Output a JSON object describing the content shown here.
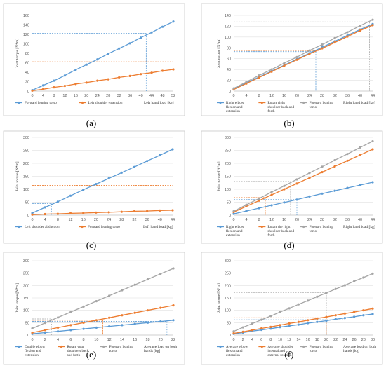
{
  "colors": {
    "series": [
      "#5B9BD5",
      "#ED7D31",
      "#A5A5A5"
    ],
    "grid": "#D9D9D9",
    "axis": "#BFBFBF",
    "panel_border": "#C8C8C8"
  },
  "chart_data": [
    {
      "panel_label": "(a)",
      "type": "line",
      "x": [
        0,
        4,
        8,
        12,
        16,
        20,
        24,
        28,
        32,
        36,
        40,
        44,
        48,
        52
      ],
      "xlabel": "Left hand load [kg]",
      "ylabel": "Joint torque [N*m]",
      "ylim": [
        0,
        160
      ],
      "yticks": [
        0,
        20,
        40,
        60,
        80,
        100,
        120,
        140,
        160
      ],
      "grid": false,
      "legend": "bottom-left",
      "series": [
        {
          "name": "Forward leaning torso",
          "values": [
            2,
            12,
            22,
            33,
            45,
            56,
            67,
            79,
            90,
            101,
            113,
            124,
            136,
            147
          ]
        },
        {
          "name": "Left shoulder extension",
          "values": [
            1,
            4,
            8,
            11,
            15,
            18,
            22,
            25,
            29,
            32,
            36,
            39,
            43,
            46
          ]
        }
      ],
      "reference_lines": [
        {
          "series": 0,
          "y": 122,
          "x": 42
        },
        {
          "series": 1,
          "y": 62,
          "x": null
        }
      ]
    },
    {
      "panel_label": "(b)",
      "type": "line",
      "x": [
        0,
        4,
        8,
        12,
        16,
        20,
        24,
        28,
        32,
        36,
        40,
        44
      ],
      "xlabel": "Right hand load [kg]",
      "ylabel": "Joint torque [N*m]",
      "ylim": [
        0,
        140
      ],
      "yticks": [
        0,
        20,
        40,
        60,
        80,
        100,
        120,
        140
      ],
      "grid": true,
      "legend": "bottom-left",
      "series": [
        {
          "name": "Right elbow flexion and extension",
          "values": [
            4,
            15,
            26,
            37,
            48,
            59,
            70,
            81,
            92,
            103,
            114,
            124
          ]
        },
        {
          "name": "Rotate right shoulder back and forth",
          "values": [
            3,
            14,
            25,
            36,
            47,
            58,
            69,
            79,
            90,
            101,
            112,
            122
          ]
        },
        {
          "name": "Forward leaning torso",
          "values": [
            5,
            17,
            29,
            40,
            52,
            63,
            75,
            86,
            98,
            109,
            121,
            132
          ]
        }
      ],
      "reference_lines": [
        {
          "series": 0,
          "y": 73,
          "x": 26
        },
        {
          "series": 1,
          "y": 75,
          "x": 27
        },
        {
          "series": 2,
          "y": 128,
          "x": 43
        }
      ]
    },
    {
      "panel_label": "(c)",
      "type": "line",
      "x": [
        0,
        4,
        8,
        12,
        16,
        20,
        24,
        28,
        32,
        36,
        40,
        44
      ],
      "xlabel": "Left hand load [kg]",
      "ylabel": "Joint torque [N*m]",
      "ylim": [
        0,
        300
      ],
      "yticks": [
        0,
        50,
        100,
        150,
        200,
        250,
        300
      ],
      "grid": true,
      "legend": "bottom-left",
      "series": [
        {
          "name": "Left shoulder abduction",
          "values": [
            8,
            30,
            52,
            75,
            98,
            120,
            142,
            164,
            186,
            209,
            231,
            254
          ]
        },
        {
          "name": "Forward leaning torso",
          "values": [
            2,
            4,
            5,
            7,
            8,
            10,
            11,
            13,
            15,
            16,
            18,
            19
          ]
        }
      ],
      "reference_lines": [
        {
          "series": 0,
          "y": 45,
          "x": 6
        },
        {
          "series": 1,
          "y": 115,
          "x": null
        }
      ]
    },
    {
      "panel_label": "(d)",
      "type": "line",
      "x": [
        0,
        4,
        8,
        12,
        16,
        20,
        24,
        28,
        32,
        36,
        40,
        44
      ],
      "xlabel": "Right hand load [kg]",
      "ylabel": "Joint torque [N*m]",
      "ylim": [
        0,
        300
      ],
      "yticks": [
        0,
        50,
        100,
        150,
        200,
        250,
        300
      ],
      "grid": true,
      "legend": "bottom-left",
      "series": [
        {
          "name": "Right elbow flexion and extension",
          "values": [
            5,
            16,
            27,
            38,
            49,
            60,
            72,
            83,
            94,
            105,
            116,
            127
          ]
        },
        {
          "name": "Rotate the right shoulder back and forth",
          "values": [
            12,
            34,
            56,
            78,
            100,
            122,
            144,
            166,
            188,
            210,
            232,
            254
          ]
        },
        {
          "name": "Forward leaning torso",
          "values": [
            15,
            40,
            64,
            89,
            113,
            138,
            163,
            187,
            212,
            236,
            261,
            285
          ]
        }
      ],
      "reference_lines": [
        {
          "series": 0,
          "y": 60,
          "x": 20
        },
        {
          "series": 1,
          "y": 68,
          "x": 10
        },
        {
          "series": 2,
          "y": 130,
          "x": 18
        }
      ]
    },
    {
      "panel_label": "(e)",
      "type": "line",
      "x": [
        0,
        2,
        4,
        6,
        8,
        10,
        12,
        14,
        16,
        18,
        20,
        22
      ],
      "xlabel": "Average load on both hands [kg]",
      "ylabel": "Joint torque [N*m]",
      "ylim": [
        0,
        300
      ],
      "yticks": [
        0,
        50,
        100,
        150,
        200,
        250,
        300
      ],
      "grid": true,
      "legend": "bottom-left",
      "series": [
        {
          "name": "Double elbow flexion and extension",
          "values": [
            5,
            10,
            15,
            20,
            25,
            30,
            35,
            40,
            45,
            50,
            55,
            60
          ]
        },
        {
          "name": "Rotate your shoulders back and forth",
          "values": [
            10,
            20,
            30,
            40,
            50,
            60,
            70,
            80,
            90,
            100,
            110,
            120
          ]
        },
        {
          "name": "Forward leaning torso",
          "values": [
            27,
            49,
            71,
            93,
            115,
            137,
            159,
            181,
            203,
            225,
            247,
            269
          ]
        }
      ],
      "reference_lines": [
        {
          "series": 0,
          "y": 55,
          "x": 21
        },
        {
          "series": 1,
          "y": 60,
          "x": 11
        },
        {
          "series": 2,
          "y": 65,
          "x": 3
        }
      ]
    },
    {
      "panel_label": "(f)",
      "type": "line",
      "x": [
        0,
        2,
        4,
        6,
        8,
        10,
        12,
        14,
        16,
        18,
        20,
        22,
        24,
        26,
        28,
        30
      ],
      "xlabel": "Average load on both hands [kg]",
      "ylabel": "Joint torque [N*m]",
      "ylim": [
        0,
        300
      ],
      "yticks": [
        0,
        50,
        100,
        150,
        200,
        250,
        300
      ],
      "grid": true,
      "legend": "bottom-left",
      "series": [
        {
          "name": "Average elbow flexion and extension",
          "values": [
            5,
            10,
            16,
            21,
            26,
            32,
            37,
            42,
            48,
            53,
            58,
            64,
            69,
            74,
            80,
            85
          ]
        },
        {
          "name": "Average shoulder internal and external rotation",
          "values": [
            7,
            13,
            20,
            27,
            33,
            40,
            47,
            53,
            60,
            67,
            73,
            80,
            87,
            93,
            100,
            107
          ]
        },
        {
          "name": "Forward leaning torso",
          "values": [
            15,
            31,
            46,
            62,
            77,
            93,
            108,
            124,
            139,
            155,
            170,
            186,
            201,
            217,
            232,
            248
          ]
        }
      ],
      "reference_lines": [
        {
          "series": 0,
          "y": 62,
          "x": 24
        },
        {
          "series": 1,
          "y": 70,
          "x": 20
        },
        {
          "series": 2,
          "y": 172,
          "x": 20
        }
      ]
    }
  ]
}
